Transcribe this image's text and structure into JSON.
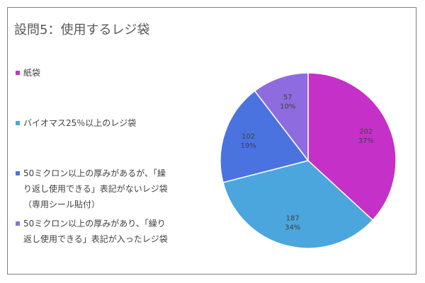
{
  "chart_data": {
    "type": "pie",
    "title": "設問5：使用するレジ袋",
    "categories": [
      "紙袋",
      "バイオマス25％以上のレジ袋",
      "50ミクロン以上の厚みがあるが、「繰り返し使用できる」表記がないレジ袋（専用シール貼付）",
      "50ミクロン以上の厚みがあり、「繰り返し使用できる」表記が入ったレジ袋"
    ],
    "values": [
      202,
      187,
      102,
      57
    ],
    "percent_labels": [
      "37%",
      "34%",
      "19%",
      "10%"
    ],
    "value_labels": [
      "202",
      "187",
      "102",
      "57"
    ],
    "colors": [
      "#c530c8",
      "#4aa6dd",
      "#4a73e0",
      "#8e6cdf"
    ],
    "legend_position": "left"
  },
  "legend": [
    {
      "lines": [
        "紙袋"
      ]
    },
    {
      "lines": [
        "バイオマス25％以上のレジ袋"
      ]
    },
    {
      "lines": [
        "50ミクロン以上の厚みがあるが、「繰",
        "り返し使用できる」表記がないレジ袋",
        "（専用シール貼付）"
      ]
    },
    {
      "lines": [
        "50ミクロン以上の厚みがあり、「繰り",
        "返し使用できる」表記が入ったレジ袋"
      ]
    }
  ]
}
